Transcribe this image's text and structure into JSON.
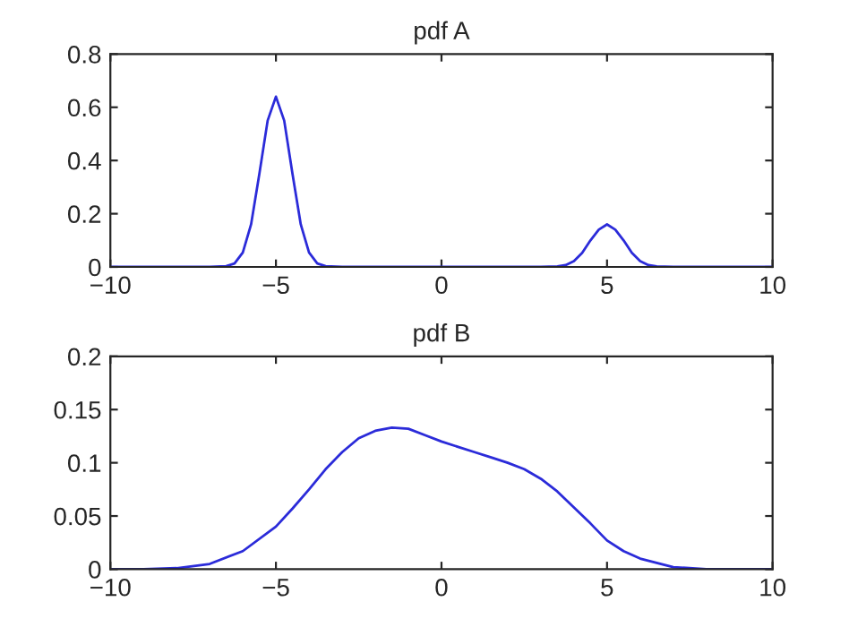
{
  "chart_data": [
    {
      "type": "line",
      "title": "pdf A",
      "xlim": [
        -10,
        10
      ],
      "xticks": [
        -10,
        -5,
        0,
        5,
        10
      ],
      "ylim": [
        0,
        0.8
      ],
      "yticks": [
        0,
        0.2,
        0.4,
        0.6,
        0.8
      ],
      "grid": false,
      "legend": false,
      "series": [
        {
          "color": "#2b2bd9",
          "x": [
            -10,
            -7,
            -6.5,
            -6.25,
            -6,
            -5.75,
            -5.5,
            -5.25,
            -5,
            -4.75,
            -4.5,
            -4.25,
            -4,
            -3.75,
            -3.5,
            -3,
            0,
            3,
            3.5,
            3.75,
            4,
            4.25,
            4.5,
            4.75,
            5,
            5.25,
            5.5,
            5.75,
            6,
            6.25,
            6.5,
            7,
            10
          ],
          "values": [
            0,
            0,
            0.003,
            0.013,
            0.054,
            0.16,
            0.35,
            0.55,
            0.64,
            0.55,
            0.35,
            0.16,
            0.054,
            0.013,
            0.003,
            0,
            0,
            0,
            0.002,
            0.007,
            0.022,
            0.053,
            0.1,
            0.14,
            0.16,
            0.14,
            0.1,
            0.053,
            0.022,
            0.007,
            0.002,
            0,
            0
          ]
        }
      ]
    },
    {
      "type": "line",
      "title": "pdf B",
      "xlim": [
        -10,
        10
      ],
      "xticks": [
        -10,
        -5,
        0,
        5,
        10
      ],
      "ylim": [
        0,
        0.2
      ],
      "yticks": [
        0,
        0.05,
        0.1,
        0.15,
        0.2
      ],
      "grid": false,
      "legend": false,
      "series": [
        {
          "color": "#2b2bd9",
          "x": [
            -10,
            -9,
            -8,
            -7,
            -6,
            -5,
            -4.5,
            -4,
            -3.5,
            -3,
            -2.5,
            -2,
            -1.5,
            -1,
            -0.5,
            0,
            0.5,
            1,
            1.5,
            2,
            2.5,
            3,
            3.5,
            4,
            4.5,
            5,
            5.5,
            6,
            7,
            8,
            9,
            10
          ],
          "values": [
            0,
            0,
            0.001,
            0.005,
            0.017,
            0.04,
            0.057,
            0.075,
            0.094,
            0.11,
            0.123,
            0.13,
            0.133,
            0.132,
            0.126,
            0.12,
            0.115,
            0.11,
            0.105,
            0.1,
            0.094,
            0.085,
            0.073,
            0.058,
            0.043,
            0.027,
            0.017,
            0.01,
            0.002,
            0,
            0,
            0
          ]
        }
      ]
    }
  ]
}
